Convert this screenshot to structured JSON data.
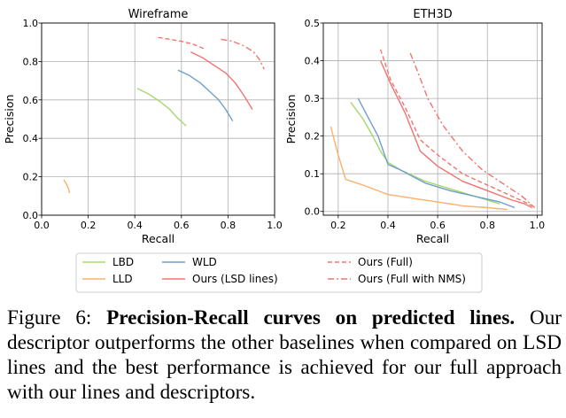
{
  "figure": {
    "legend": [
      {
        "name": "LBD",
        "color": "#a5d86e",
        "dash": "solid"
      },
      {
        "name": "LLD",
        "color": "#fbb06c",
        "dash": "solid"
      },
      {
        "name": "WLD",
        "color": "#6f9fcb",
        "dash": "solid"
      },
      {
        "name": "Ours (LSD lines)",
        "color": "#f0746e",
        "dash": "solid"
      },
      {
        "name": "Ours (Full)",
        "color": "#f0746e",
        "dash": "dashed"
      },
      {
        "name": "Ours (Full with NMS)",
        "color": "#f0746e",
        "dash": "dashdot"
      }
    ]
  },
  "chart_data": [
    {
      "type": "line",
      "title": "Wireframe",
      "xlabel": "Recall",
      "ylabel": "Precision",
      "xlim": [
        0,
        1.0
      ],
      "ylim": [
        0,
        1.0
      ],
      "xticks": [
        "0.0",
        "0.2",
        "0.4",
        "0.6",
        "0.8",
        "1.0"
      ],
      "yticks": [
        "0.0",
        "0.2",
        "0.4",
        "0.6",
        "0.8",
        "1.0"
      ],
      "grid": true,
      "series": [
        {
          "name": "LBD",
          "x": [
            0.41,
            0.46,
            0.51,
            0.55,
            0.58,
            0.62
          ],
          "y": [
            0.66,
            0.63,
            0.59,
            0.55,
            0.51,
            0.465
          ]
        },
        {
          "name": "LLD",
          "x": [
            0.095,
            0.105,
            0.115,
            0.12
          ],
          "y": [
            0.185,
            0.165,
            0.14,
            0.115
          ]
        },
        {
          "name": "WLD",
          "x": [
            0.585,
            0.63,
            0.68,
            0.72,
            0.76,
            0.79,
            0.82
          ],
          "y": [
            0.755,
            0.73,
            0.69,
            0.645,
            0.6,
            0.55,
            0.49
          ]
        },
        {
          "name": "Ours (LSD lines)",
          "x": [
            0.64,
            0.69,
            0.74,
            0.79,
            0.83,
            0.87,
            0.905
          ],
          "y": [
            0.85,
            0.82,
            0.78,
            0.74,
            0.69,
            0.62,
            0.55
          ]
        },
        {
          "name": "Ours (Full)",
          "x": [
            0.5,
            0.55,
            0.6,
            0.65,
            0.7
          ],
          "y": [
            0.925,
            0.915,
            0.905,
            0.89,
            0.865
          ]
        },
        {
          "name": "Ours (Full with NMS)",
          "x": [
            0.77,
            0.82,
            0.87,
            0.91,
            0.935,
            0.955
          ],
          "y": [
            0.915,
            0.905,
            0.88,
            0.85,
            0.81,
            0.76
          ]
        }
      ]
    },
    {
      "type": "line",
      "title": "ETH3D",
      "xlabel": "Recall",
      "ylabel": "Precision",
      "xlim": [
        0.14,
        1.02
      ],
      "ylim": [
        -0.01,
        0.5
      ],
      "xticks": [
        "0.2",
        "0.4",
        "0.6",
        "0.8",
        "1.0"
      ],
      "yticks": [
        "0.0",
        "0.1",
        "0.2",
        "0.3",
        "0.4",
        "0.5"
      ],
      "grid": true,
      "series": [
        {
          "name": "LBD",
          "x": [
            0.25,
            0.3,
            0.335,
            0.37,
            0.4,
            0.45,
            0.55,
            0.65,
            0.75,
            0.85
          ],
          "y": [
            0.29,
            0.245,
            0.205,
            0.16,
            0.13,
            0.11,
            0.08,
            0.06,
            0.04,
            0.02
          ]
        },
        {
          "name": "LLD",
          "x": [
            0.17,
            0.2,
            0.23,
            0.3,
            0.4,
            0.5,
            0.6,
            0.7,
            0.8,
            0.88
          ],
          "y": [
            0.225,
            0.15,
            0.085,
            0.07,
            0.045,
            0.035,
            0.025,
            0.015,
            0.01,
            0.005
          ]
        },
        {
          "name": "WLD",
          "x": [
            0.28,
            0.32,
            0.36,
            0.4,
            0.45,
            0.55,
            0.65,
            0.75,
            0.85,
            0.91
          ],
          "y": [
            0.3,
            0.25,
            0.2,
            0.125,
            0.11,
            0.075,
            0.055,
            0.04,
            0.025,
            0.01
          ]
        },
        {
          "name": "Ours (LSD lines)",
          "x": [
            0.37,
            0.41,
            0.47,
            0.53,
            0.6,
            0.7,
            0.8,
            0.9,
            0.95,
            0.98
          ],
          "y": [
            0.4,
            0.34,
            0.26,
            0.16,
            0.12,
            0.08,
            0.055,
            0.03,
            0.02,
            0.01
          ]
        },
        {
          "name": "Ours (Full)",
          "x": [
            0.37,
            0.41,
            0.47,
            0.53,
            0.6,
            0.7,
            0.8,
            0.9,
            0.95,
            0.98
          ],
          "y": [
            0.43,
            0.35,
            0.275,
            0.19,
            0.15,
            0.1,
            0.07,
            0.04,
            0.025,
            0.015
          ]
        },
        {
          "name": "Ours (Full with NMS)",
          "x": [
            0.49,
            0.52,
            0.56,
            0.62,
            0.7,
            0.78,
            0.86,
            0.94,
            0.99
          ],
          "y": [
            0.42,
            0.37,
            0.3,
            0.23,
            0.16,
            0.11,
            0.075,
            0.04,
            0.01
          ]
        }
      ]
    }
  ],
  "caption": {
    "label": "Figure 6: ",
    "bold": "Precision-Recall curves on predicted lines.",
    "rest": " Our descriptor outperforms the other baselines when compared on LSD lines and the best performance is achieved for our full approach with our lines and descriptors."
  }
}
